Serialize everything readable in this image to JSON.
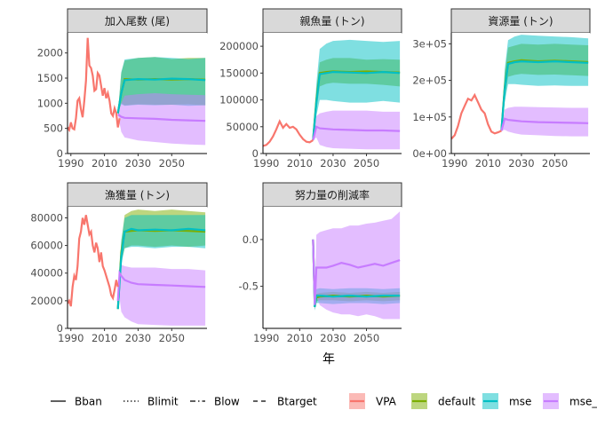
{
  "figure": {
    "xlabel": "年",
    "xlim": [
      1988,
      2071
    ],
    "x_ticks": [
      1990,
      2010,
      2030,
      2050
    ]
  },
  "colors": {
    "VPA": "#F8766D",
    "default": "#7CAE00",
    "mse": "#00BFC4",
    "mse_": "#C77CFF",
    "strip_bg": "#D9D9D9",
    "panel_border": "#333333"
  },
  "chart_data": [
    {
      "type": "line",
      "title": "加入尾数 (尾)",
      "ylim": [
        0,
        2400
      ],
      "y_ticks": [
        0,
        500,
        1000,
        1500,
        2000
      ],
      "y_tick_labels": [
        "0",
        "500",
        "1000",
        "1500",
        "2000"
      ],
      "vpa": {
        "x": [
          1988,
          1989,
          1990,
          1991,
          1992,
          1993,
          1994,
          1995,
          1996,
          1997,
          1998,
          1999,
          2000,
          2001,
          2002,
          2003,
          2004,
          2005,
          2006,
          2007,
          2008,
          2009,
          2010,
          2011,
          2012,
          2013,
          2014,
          2015,
          2016,
          2017,
          2018,
          2019
        ],
        "y": [
          520,
          470,
          620,
          500,
          480,
          700,
          1050,
          1100,
          880,
          720,
          1050,
          1450,
          2300,
          1750,
          1700,
          1550,
          1250,
          1280,
          1600,
          1550,
          1350,
          1150,
          1300,
          1100,
          1200,
          1050,
          800,
          750,
          900,
          800,
          520,
          700
        ]
      },
      "series": [
        {
          "name": "default",
          "x": [
            2018,
            2020,
            2022,
            2030,
            2040,
            2050,
            2060,
            2070
          ],
          "y": [
            800,
            1200,
            1480,
            1470,
            1480,
            1470,
            1480,
            1470
          ],
          "lo": [
            800,
            1000,
            960,
            980,
            970,
            970,
            980,
            960
          ],
          "hi": [
            800,
            1600,
            1850,
            1900,
            1920,
            1880,
            1900,
            1900
          ]
        },
        {
          "name": "mse",
          "x": [
            2018,
            2020,
            2022,
            2030,
            2040,
            2050,
            2060,
            2070
          ],
          "y": [
            800,
            1200,
            1460,
            1480,
            1470,
            1490,
            1480,
            1460
          ],
          "lo": [
            800,
            980,
            950,
            970,
            960,
            970,
            950,
            960
          ],
          "hi": [
            800,
            1620,
            1870,
            1900,
            1920,
            1900,
            1880,
            1900
          ]
        },
        {
          "name": "mse_",
          "x": [
            2018,
            2020,
            2022,
            2030,
            2040,
            2050,
            2060,
            2070
          ],
          "y": [
            780,
            730,
            710,
            700,
            690,
            670,
            660,
            650
          ],
          "lo": [
            780,
            430,
            320,
            260,
            230,
            200,
            180,
            170
          ],
          "hi": [
            780,
            1000,
            1150,
            1180,
            1200,
            1180,
            1170,
            1160
          ]
        }
      ]
    },
    {
      "type": "line",
      "title": "親魚量 (トン)",
      "ylim": [
        0,
        225000
      ],
      "y_ticks": [
        0,
        50000,
        100000,
        150000,
        200000
      ],
      "y_tick_labels": [
        "0",
        "50000",
        "100000",
        "150000",
        "200000"
      ],
      "vpa": {
        "x": [
          1988,
          1990,
          1992,
          1994,
          1996,
          1998,
          2000,
          2002,
          2004,
          2006,
          2008,
          2010,
          2012,
          2014,
          2016,
          2018
        ],
        "y": [
          14000,
          16000,
          22000,
          32000,
          45000,
          60000,
          48000,
          55000,
          48000,
          50000,
          45000,
          35000,
          27000,
          22000,
          21000,
          25000
        ]
      },
      "series": [
        {
          "name": "default",
          "x": [
            2018,
            2020,
            2022,
            2026,
            2030,
            2040,
            2050,
            2060,
            2070
          ],
          "y": [
            25000,
            100000,
            150000,
            152000,
            153000,
            152000,
            153000,
            152000,
            151000
          ],
          "lo": [
            25000,
            80000,
            125000,
            130000,
            132000,
            130000,
            130000,
            128000,
            125000
          ],
          "hi": [
            25000,
            120000,
            170000,
            175000,
            178000,
            178000,
            175000,
            176000,
            175000
          ]
        },
        {
          "name": "mse",
          "x": [
            2018,
            2020,
            2022,
            2026,
            2030,
            2040,
            2050,
            2060,
            2070
          ],
          "y": [
            25000,
            95000,
            148000,
            150000,
            152000,
            151000,
            150000,
            152000,
            150000
          ],
          "lo": [
            25000,
            70000,
            100000,
            100000,
            98000,
            95000,
            95000,
            98000,
            95000
          ],
          "hi": [
            25000,
            130000,
            195000,
            205000,
            210000,
            212000,
            210000,
            208000,
            210000
          ]
        },
        {
          "name": "mse_",
          "x": [
            2018,
            2020,
            2022,
            2026,
            2030,
            2040,
            2050,
            2060,
            2070
          ],
          "y": [
            25000,
            50000,
            47000,
            46000,
            45000,
            44000,
            43000,
            43000,
            42000
          ],
          "lo": [
            25000,
            30000,
            16000,
            12000,
            10000,
            9000,
            8000,
            8000,
            8000
          ],
          "hi": [
            25000,
            70000,
            75000,
            78000,
            80000,
            80000,
            80000,
            78000,
            78000
          ]
        }
      ]
    },
    {
      "type": "line",
      "title": "資源量 (トン)",
      "ylim": [
        0,
        330000
      ],
      "y_ticks": [
        0,
        100000,
        200000,
        300000
      ],
      "y_tick_labels": [
        "0e+00",
        "1e+05",
        "2e+05",
        "3e+05"
      ],
      "vpa": {
        "x": [
          1988,
          1990,
          1992,
          1994,
          1996,
          1998,
          2000,
          2002,
          2004,
          2006,
          2008,
          2010,
          2012,
          2014,
          2016,
          2018
        ],
        "y": [
          40000,
          50000,
          75000,
          110000,
          130000,
          150000,
          145000,
          160000,
          140000,
          120000,
          110000,
          80000,
          60000,
          55000,
          58000,
          62000
        ]
      },
      "series": [
        {
          "name": "default",
          "x": [
            2018,
            2020,
            2022,
            2026,
            2030,
            2040,
            2050,
            2060,
            2070
          ],
          "y": [
            62000,
            180000,
            248000,
            252000,
            255000,
            252000,
            254000,
            252000,
            250000
          ],
          "lo": [
            62000,
            150000,
            210000,
            215000,
            218000,
            215000,
            216000,
            214000,
            212000
          ],
          "hi": [
            62000,
            220000,
            290000,
            295000,
            300000,
            298000,
            300000,
            298000,
            296000
          ]
        },
        {
          "name": "mse",
          "x": [
            2018,
            2020,
            2022,
            2026,
            2030,
            2040,
            2050,
            2060,
            2070
          ],
          "y": [
            62000,
            175000,
            245000,
            250000,
            252000,
            250000,
            252000,
            250000,
            248000
          ],
          "lo": [
            62000,
            140000,
            190000,
            190000,
            188000,
            185000,
            186000,
            185000,
            185000
          ],
          "hi": [
            62000,
            230000,
            310000,
            320000,
            325000,
            322000,
            320000,
            318000,
            315000
          ]
        },
        {
          "name": "mse_",
          "x": [
            2018,
            2020,
            2022,
            2026,
            2030,
            2040,
            2050,
            2060,
            2070
          ],
          "y": [
            62000,
            95000,
            92000,
            90000,
            88000,
            86000,
            85000,
            84000,
            83000
          ],
          "lo": [
            62000,
            65000,
            60000,
            55000,
            52000,
            50000,
            48000,
            47000,
            47000
          ],
          "hi": [
            62000,
            120000,
            125000,
            128000,
            128000,
            127000,
            126000,
            125000,
            125000
          ]
        }
      ]
    },
    {
      "type": "line",
      "title": "漁獲量 (トン)",
      "ylim": [
        0,
        88000
      ],
      "y_ticks": [
        0,
        20000,
        40000,
        60000,
        80000
      ],
      "y_tick_labels": [
        "0",
        "20000",
        "40000",
        "60000",
        "80000"
      ],
      "vpa": {
        "x": [
          1988,
          1989,
          1990,
          1991,
          1992,
          1993,
          1994,
          1995,
          1996,
          1997,
          1998,
          1999,
          2000,
          2001,
          2002,
          2003,
          2004,
          2005,
          2006,
          2007,
          2008,
          2009,
          2010,
          2011,
          2012,
          2013,
          2014,
          2015,
          2016,
          2017,
          2018
        ],
        "y": [
          18000,
          20000,
          16000,
          30000,
          38000,
          35000,
          45000,
          65000,
          70000,
          80000,
          75000,
          82000,
          75000,
          68000,
          70000,
          60000,
          55000,
          62000,
          58000,
          48000,
          55000,
          45000,
          42000,
          38000,
          34000,
          30000,
          24000,
          22000,
          28000,
          35000,
          30000
        ]
      },
      "series": [
        {
          "name": "default",
          "x": [
            2018,
            2019,
            2020,
            2022,
            2026,
            2030,
            2040,
            2050,
            2060,
            2070
          ],
          "y": [
            14000,
            35000,
            55000,
            70000,
            70500,
            71000,
            70500,
            71000,
            70500,
            70000
          ],
          "lo": [
            14000,
            25000,
            48000,
            58000,
            60000,
            60000,
            59000,
            60000,
            59000,
            60000
          ],
          "hi": [
            14000,
            45000,
            62000,
            82000,
            85000,
            86000,
            85000,
            86000,
            85000,
            84000
          ]
        },
        {
          "name": "mse",
          "x": [
            2018,
            2019,
            2020,
            2022,
            2026,
            2030,
            2040,
            2050,
            2060,
            2070
          ],
          "y": [
            14000,
            33000,
            52000,
            70000,
            72000,
            71000,
            71500,
            71000,
            72000,
            71000
          ],
          "lo": [
            14000,
            24000,
            46000,
            58000,
            59000,
            59000,
            58000,
            59000,
            59000,
            58000
          ],
          "hi": [
            14000,
            44000,
            64000,
            80000,
            82000,
            82000,
            82000,
            82000,
            82000,
            82000
          ]
        },
        {
          "name": "mse_",
          "x": [
            2018,
            2019,
            2020,
            2022,
            2026,
            2030,
            2040,
            2050,
            2060,
            2070
          ],
          "y": [
            20000,
            40000,
            38000,
            35000,
            33000,
            32000,
            31500,
            31000,
            30500,
            30000
          ],
          "lo": [
            20000,
            22000,
            12000,
            8000,
            5000,
            3000,
            2500,
            2000,
            2000,
            2000
          ],
          "hi": [
            20000,
            45000,
            46000,
            45000,
            44000,
            44000,
            44000,
            43000,
            43000,
            42000
          ]
        }
      ]
    },
    {
      "type": "line",
      "title": "努力量の削減率",
      "ylim": [
        -0.95,
        0.35
      ],
      "y_ticks": [
        -0.5,
        0.0
      ],
      "y_tick_labels": [
        "-0.5",
        "0.0"
      ],
      "vpa": null,
      "series": [
        {
          "name": "default",
          "x": [
            2018,
            2019,
            2020,
            2022,
            2030,
            2040,
            2050,
            2060,
            2070
          ],
          "y": [
            0.0,
            -0.72,
            -0.62,
            -0.61,
            -0.6,
            -0.61,
            -0.6,
            -0.61,
            -0.6
          ],
          "lo": [
            0.0,
            -0.75,
            -0.66,
            -0.65,
            -0.65,
            -0.66,
            -0.65,
            -0.66,
            -0.65
          ],
          "hi": [
            0.0,
            -0.69,
            -0.58,
            -0.57,
            -0.56,
            -0.57,
            -0.56,
            -0.57,
            -0.56
          ]
        },
        {
          "name": "mse",
          "x": [
            2018,
            2019,
            2020,
            2022,
            2030,
            2040,
            2050,
            2060,
            2070
          ],
          "y": [
            0.0,
            -0.72,
            -0.6,
            -0.6,
            -0.61,
            -0.6,
            -0.61,
            -0.6,
            -0.6
          ],
          "lo": [
            0.0,
            -0.76,
            -0.68,
            -0.68,
            -0.69,
            -0.68,
            -0.68,
            -0.69,
            -0.68
          ],
          "hi": [
            0.0,
            -0.68,
            -0.53,
            -0.52,
            -0.53,
            -0.52,
            -0.52,
            -0.53,
            -0.52
          ]
        },
        {
          "name": "mse_",
          "x": [
            2018,
            2019,
            2020,
            2022,
            2026,
            2030,
            2035,
            2040,
            2045,
            2050,
            2055,
            2060,
            2065,
            2070
          ],
          "y": [
            0.0,
            -0.7,
            -0.3,
            -0.3,
            -0.3,
            -0.28,
            -0.25,
            -0.27,
            -0.3,
            -0.28,
            -0.26,
            -0.28,
            -0.25,
            -0.22
          ],
          "lo": [
            0.0,
            -0.75,
            -0.6,
            -0.7,
            -0.75,
            -0.78,
            -0.8,
            -0.8,
            -0.82,
            -0.8,
            -0.82,
            -0.85,
            -0.85,
            -0.85
          ],
          "hi": [
            0.0,
            -0.65,
            0.05,
            0.08,
            0.1,
            0.12,
            0.12,
            0.15,
            0.15,
            0.17,
            0.18,
            0.2,
            0.22,
            0.3
          ]
        }
      ]
    }
  ],
  "legend": {
    "linetypes": [
      {
        "label": "Bban",
        "dash": "solid"
      },
      {
        "label": "Blimit",
        "dash": "dotted"
      },
      {
        "label": "Blow",
        "dash": "dotdash"
      },
      {
        "label": "Btarget",
        "dash": "dashed"
      }
    ],
    "series": [
      {
        "label": "VPA",
        "key": "VPA"
      },
      {
        "label": "default",
        "key": "default"
      },
      {
        "label": "mse",
        "key": "mse"
      },
      {
        "label": "mse_",
        "key": "mse_"
      }
    ]
  }
}
